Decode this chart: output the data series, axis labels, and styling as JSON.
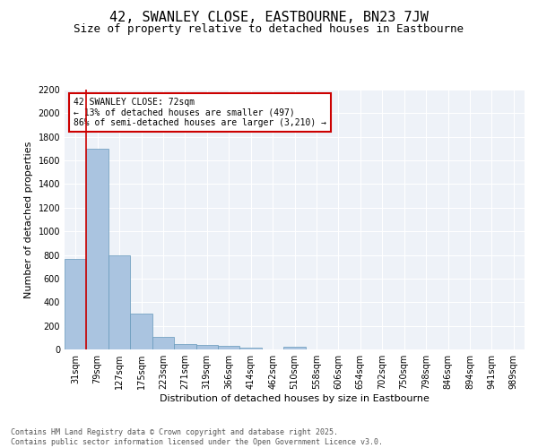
{
  "title_line1": "42, SWANLEY CLOSE, EASTBOURNE, BN23 7JW",
  "title_line2": "Size of property relative to detached houses in Eastbourne",
  "xlabel": "Distribution of detached houses by size in Eastbourne",
  "ylabel": "Number of detached properties",
  "categories": [
    "31sqm",
    "79sqm",
    "127sqm",
    "175sqm",
    "223sqm",
    "271sqm",
    "319sqm",
    "366sqm",
    "414sqm",
    "462sqm",
    "510sqm",
    "558sqm",
    "606sqm",
    "654sqm",
    "702sqm",
    "750sqm",
    "798sqm",
    "846sqm",
    "894sqm",
    "941sqm",
    "989sqm"
  ],
  "values": [
    770,
    1700,
    800,
    305,
    110,
    42,
    37,
    27,
    18,
    0,
    20,
    0,
    0,
    0,
    0,
    0,
    0,
    0,
    0,
    0,
    0
  ],
  "bar_color": "#aac4e0",
  "bar_edge_color": "#6699bb",
  "background_color": "#eef2f8",
  "grid_color": "#ffffff",
  "vline_color": "#cc0000",
  "annotation_text": "42 SWANLEY CLOSE: 72sqm\n← 13% of detached houses are smaller (497)\n86% of semi-detached houses are larger (3,210) →",
  "annotation_box_color": "#cc0000",
  "ylim": [
    0,
    2200
  ],
  "yticks": [
    0,
    200,
    400,
    600,
    800,
    1000,
    1200,
    1400,
    1600,
    1800,
    2000,
    2200
  ],
  "footer_line1": "Contains HM Land Registry data © Crown copyright and database right 2025.",
  "footer_line2": "Contains public sector information licensed under the Open Government Licence v3.0.",
  "title_fontsize": 11,
  "subtitle_fontsize": 9,
  "axis_label_fontsize": 8,
  "tick_fontsize": 7,
  "annotation_fontsize": 7,
  "footer_fontsize": 6
}
